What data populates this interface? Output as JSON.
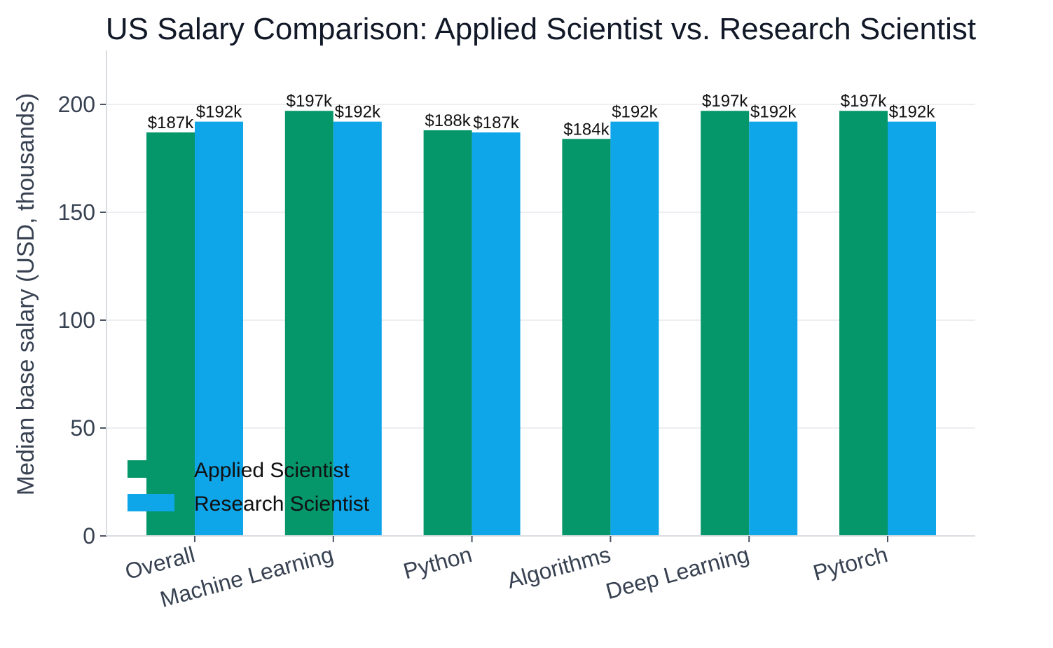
{
  "chart_data": {
    "type": "bar",
    "title": "US Salary Comparison: Applied Scientist vs. Research Scientist",
    "xlabel": "",
    "ylabel": "Median base salary (USD, thousands)",
    "ylim": [
      0,
      225
    ],
    "yticks": [
      "0",
      "50",
      "100",
      "150",
      "200"
    ],
    "categories": [
      "Overall",
      "Machine Learning",
      "Python",
      "Algorithms",
      "Deep Learning",
      "Pytorch"
    ],
    "series": [
      {
        "name": "Applied Scientist",
        "color": "#059669",
        "values": [
          187,
          197,
          188,
          184,
          197,
          197
        ],
        "labels": [
          "$187k",
          "$197k",
          "$188k",
          "$184k",
          "$197k",
          "$197k"
        ]
      },
      {
        "name": "Research Scientist",
        "color": "#0ea5e9",
        "values": [
          192,
          192,
          187,
          192,
          192,
          192
        ],
        "labels": [
          "$192k",
          "$192k",
          "$187k",
          "$192k",
          "$192k",
          "$192k"
        ]
      }
    ],
    "grid": "y",
    "legend_position": "lower-left"
  }
}
